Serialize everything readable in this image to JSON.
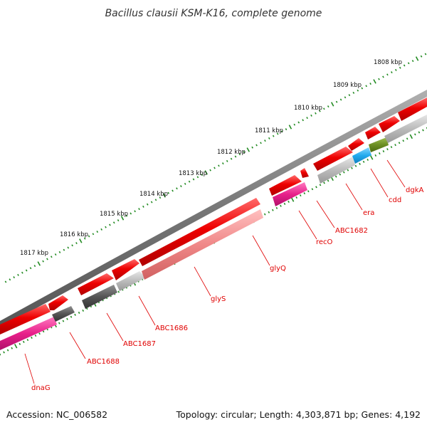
{
  "title": "Bacillus clausii KSM-K16, complete genome",
  "footer": {
    "accession": "Accession: NC_006582",
    "info": "Topology: circular; Length: 4,303,871 bp; Genes: 4,192"
  },
  "colors": {
    "backbone": "#7a7a7a",
    "tick": "#228b22",
    "gene_red": "#ee0000",
    "gene_magenta": "#e8208a",
    "gene_pink": "#f08888",
    "gene_darkgray": "#555555",
    "gene_lightgray": "#bbbbbb",
    "gene_cyan": "#22aaee",
    "gene_olive": "#6b8e23",
    "label": "#e00000"
  },
  "scale_labels": [
    "1808 kbp",
    "1809 kbp",
    "1810 kbp",
    "1811 kbp",
    "1812 kbp",
    "1813 kbp",
    "1814 kbp",
    "1815 kbp",
    "1816 kbp",
    "1817 kbp"
  ],
  "gene_labels": [
    "dgkA",
    "cdd",
    "era",
    "ABC1682",
    "recO",
    "glyQ",
    "glyS",
    "ABC1686",
    "ABC1687",
    "ABC1688",
    "dnaG"
  ]
}
